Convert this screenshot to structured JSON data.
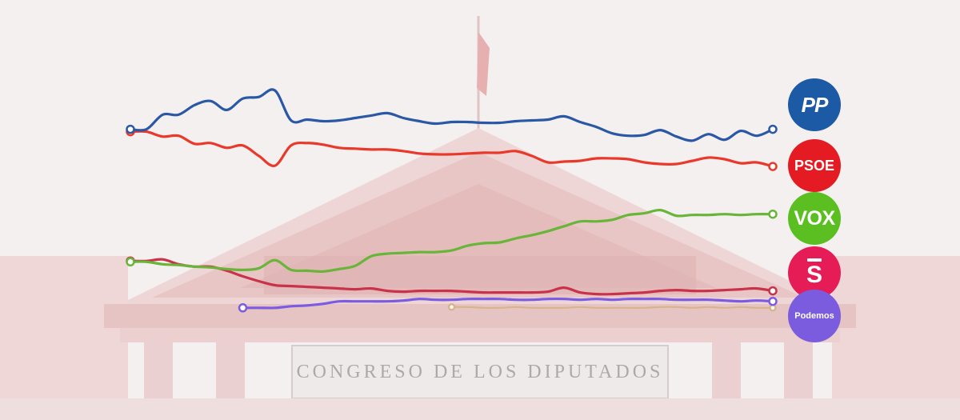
{
  "background": {
    "building_inscription": "CONGRESO DE LOS DIPUTADOS",
    "tint": "#e8c2c2"
  },
  "chart_data": {
    "type": "line",
    "title": "",
    "xlabel": "",
    "ylabel": "",
    "ylim": [
      0,
      40
    ],
    "grid": false,
    "legend": "right, party logo badges at line ends",
    "series": [
      {
        "name": "PP",
        "color": "#2b58a4",
        "badge_color": "#1d5aa6",
        "x": [
          0,
          1,
          2,
          3,
          4,
          5,
          6,
          7,
          8,
          9,
          10,
          11,
          12,
          13,
          14,
          15,
          16,
          17,
          18,
          19,
          20,
          21,
          22,
          23,
          24,
          25,
          26,
          27,
          28,
          29,
          30,
          31,
          32,
          33,
          34,
          35,
          36,
          37,
          38,
          39,
          40
        ],
        "values": [
          33.9,
          33.9,
          35.7,
          35.7,
          36.9,
          37.4,
          36.3,
          37.7,
          37.9,
          38.7,
          35.0,
          35.1,
          34.9,
          35.0,
          35.3,
          35.6,
          35.9,
          35.3,
          34.9,
          34.6,
          34.8,
          34.8,
          34.7,
          34.7,
          34.9,
          35.0,
          35.1,
          35.5,
          34.8,
          34.2,
          33.4,
          33.1,
          33.2,
          33.8,
          33.0,
          32.5,
          33.3,
          32.6,
          33.7,
          33.1,
          33.9
        ]
      },
      {
        "name": "PSOE",
        "color": "#e8392b",
        "badge_color": "#e41b23",
        "x": [
          0,
          1,
          2,
          3,
          4,
          5,
          6,
          7,
          8,
          9,
          10,
          11,
          12,
          13,
          14,
          15,
          16,
          17,
          18,
          19,
          20,
          21,
          22,
          23,
          24,
          25,
          26,
          27,
          28,
          29,
          30,
          31,
          32,
          33,
          34,
          35,
          36,
          37,
          38,
          39,
          40
        ],
        "values": [
          33.6,
          33.6,
          33.0,
          33.1,
          32.1,
          32.2,
          31.6,
          31.9,
          30.6,
          29.4,
          31.9,
          32.2,
          32.0,
          31.6,
          31.5,
          31.4,
          31.4,
          31.2,
          30.9,
          30.8,
          30.8,
          30.9,
          31.0,
          31.0,
          31.2,
          30.6,
          29.8,
          29.9,
          30.0,
          30.3,
          30.3,
          30.2,
          29.8,
          29.6,
          29.6,
          30.0,
          30.4,
          30.2,
          29.7,
          29.8,
          29.3
        ]
      },
      {
        "name": "VOX",
        "color": "#68b539",
        "badge_color": "#5bbf21",
        "x": [
          0,
          1,
          2,
          3,
          4,
          5,
          6,
          7,
          8,
          9,
          10,
          11,
          12,
          13,
          14,
          15,
          16,
          17,
          18,
          19,
          20,
          21,
          22,
          23,
          24,
          25,
          26,
          27,
          28,
          29,
          30,
          31,
          32,
          33,
          34,
          35,
          36,
          37,
          38,
          39,
          40
        ],
        "values": [
          17.5,
          17.5,
          17.2,
          17.1,
          16.9,
          16.8,
          16.6,
          16.5,
          16.7,
          17.7,
          16.5,
          16.4,
          16.3,
          16.6,
          17.0,
          18.2,
          18.5,
          18.6,
          18.7,
          18.7,
          18.9,
          19.5,
          19.8,
          19.9,
          20.4,
          20.8,
          21.3,
          21.9,
          22.5,
          22.5,
          22.7,
          23.3,
          23.5,
          23.9,
          23.2,
          23.3,
          23.3,
          23.4,
          23.3,
          23.4,
          23.4
        ]
      },
      {
        "name": "Sumar",
        "color": "#c8334a",
        "badge_color": "#e51c55",
        "x": [
          0,
          1,
          2,
          3,
          4,
          5,
          6,
          7,
          8,
          9,
          10,
          11,
          12,
          13,
          14,
          15,
          16,
          17,
          18,
          19,
          20,
          21,
          22,
          23,
          24,
          25,
          26,
          27,
          28,
          29,
          30,
          31,
          32,
          33,
          34,
          35,
          36,
          37,
          38,
          39,
          40
        ],
        "values": [
          17.6,
          17.6,
          17.8,
          17.2,
          16.9,
          16.9,
          16.4,
          15.7,
          15.1,
          14.6,
          14.5,
          14.4,
          14.3,
          14.2,
          14.1,
          14.2,
          13.9,
          13.8,
          13.9,
          13.9,
          13.9,
          13.8,
          13.7,
          13.7,
          13.7,
          13.7,
          13.8,
          14.3,
          13.7,
          13.5,
          13.5,
          13.6,
          13.7,
          13.9,
          14.0,
          13.9,
          13.9,
          14.0,
          14.1,
          14.2,
          13.9
        ]
      },
      {
        "name": "Podemos",
        "color": "#7b5ce0",
        "badge_color": "#7b5cdf",
        "x": [
          7,
          8,
          9,
          10,
          11,
          12,
          13,
          14,
          15,
          16,
          17,
          18,
          19,
          20,
          21,
          22,
          23,
          24,
          25,
          26,
          27,
          28,
          29,
          30,
          31,
          32,
          33,
          34,
          35,
          36,
          37,
          38,
          39,
          40
        ],
        "values": [
          11.8,
          11.8,
          11.8,
          12.0,
          12.1,
          12.3,
          12.6,
          12.6,
          12.6,
          12.6,
          12.7,
          12.9,
          12.8,
          12.8,
          12.9,
          12.9,
          12.9,
          12.8,
          12.8,
          12.9,
          12.9,
          12.8,
          12.9,
          12.8,
          12.9,
          12.9,
          12.9,
          12.8,
          12.8,
          12.8,
          12.7,
          12.6,
          12.7,
          12.6
        ]
      },
      {
        "color": "#d8b48c",
        "x": [
          20,
          21,
          22,
          23,
          24,
          25,
          26,
          27,
          28,
          29,
          30,
          31,
          32,
          33,
          34,
          35,
          36,
          37,
          38,
          39,
          40
        ],
        "values": [
          11.9,
          11.9,
          11.8,
          11.8,
          11.9,
          11.8,
          11.8,
          11.8,
          11.9,
          11.8,
          11.8,
          11.8,
          11.8,
          11.9,
          11.9,
          11.8,
          11.9,
          11.8,
          11.9,
          11.8,
          11.8
        ]
      }
    ]
  },
  "badges": {
    "pp": "PP",
    "psoe": "PSOE",
    "vox": "VOX",
    "sumar": "S",
    "podemos": "Podemos"
  }
}
